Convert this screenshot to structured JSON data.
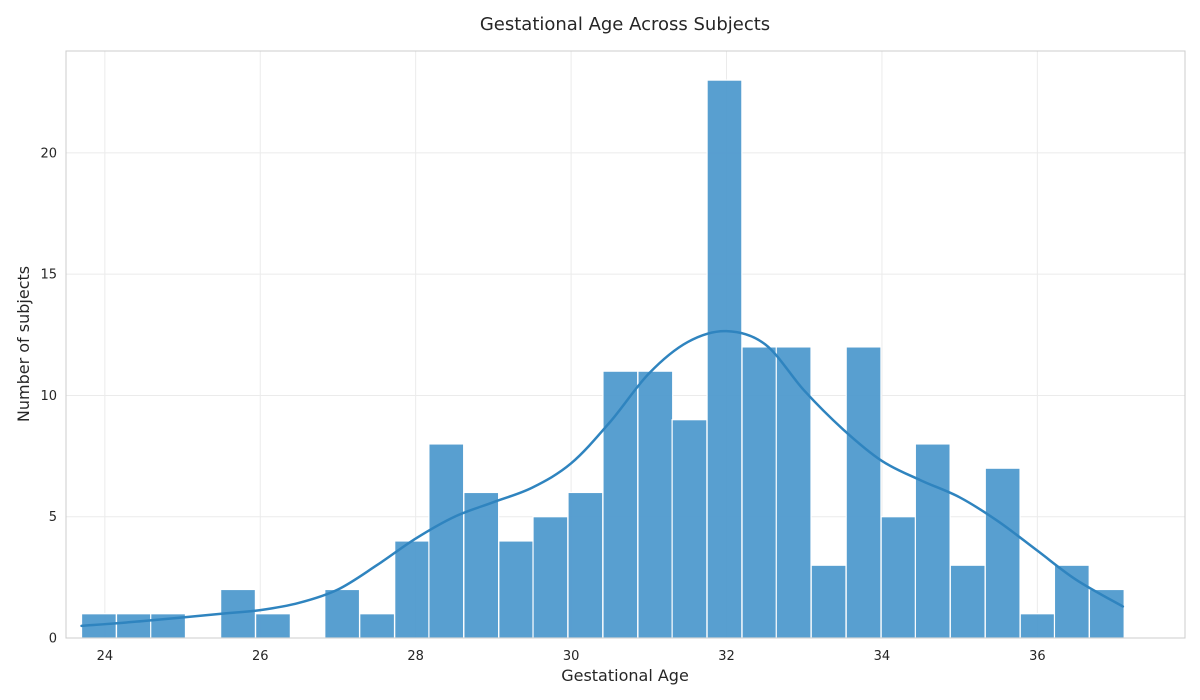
{
  "chart_data": {
    "type": "bar",
    "subtype": "histogram",
    "title": "Gestational Age Across Subjects",
    "xlabel": "Gestational Age",
    "ylabel": "Number of subjects",
    "xlim": [
      23.5,
      37.9
    ],
    "ylim": [
      0,
      24.2
    ],
    "xticks": [
      24,
      26,
      28,
      30,
      32,
      34,
      36
    ],
    "yticks": [
      0,
      5,
      10,
      15,
      20
    ],
    "grid": true,
    "legend": false,
    "bar_color": "#4b98cc",
    "kde_color": "#2f84bf",
    "bin_start": 23.7,
    "bin_width": 0.4473,
    "bins": [
      {
        "x0": 23.7,
        "count": 1
      },
      {
        "x0": 24.15,
        "count": 1
      },
      {
        "x0": 24.59,
        "count": 1
      },
      {
        "x0": 25.04,
        "count": 0
      },
      {
        "x0": 25.49,
        "count": 2
      },
      {
        "x0": 25.94,
        "count": 1
      },
      {
        "x0": 26.38,
        "count": 0
      },
      {
        "x0": 26.83,
        "count": 2
      },
      {
        "x0": 27.28,
        "count": 1
      },
      {
        "x0": 27.73,
        "count": 4
      },
      {
        "x0": 28.17,
        "count": 8
      },
      {
        "x0": 28.62,
        "count": 6
      },
      {
        "x0": 29.07,
        "count": 4
      },
      {
        "x0": 29.51,
        "count": 5
      },
      {
        "x0": 29.96,
        "count": 6
      },
      {
        "x0": 30.41,
        "count": 11
      },
      {
        "x0": 30.86,
        "count": 11
      },
      {
        "x0": 31.3,
        "count": 9
      },
      {
        "x0": 31.75,
        "count": 23
      },
      {
        "x0": 32.2,
        "count": 12
      },
      {
        "x0": 32.64,
        "count": 12
      },
      {
        "x0": 33.09,
        "count": 3
      },
      {
        "x0": 33.54,
        "count": 12
      },
      {
        "x0": 33.99,
        "count": 5
      },
      {
        "x0": 34.43,
        "count": 8
      },
      {
        "x0": 34.88,
        "count": 3
      },
      {
        "x0": 35.33,
        "count": 7
      },
      {
        "x0": 35.78,
        "count": 1
      },
      {
        "x0": 36.22,
        "count": 3
      },
      {
        "x0": 36.67,
        "count": 2
      }
    ],
    "kde": {
      "x": [
        23.7,
        24.5,
        25.5,
        26.0,
        26.5,
        27.0,
        27.5,
        28.0,
        28.5,
        29.0,
        29.5,
        30.0,
        30.5,
        31.0,
        31.5,
        32.0,
        32.5,
        33.0,
        33.5,
        34.0,
        34.5,
        35.0,
        35.5,
        36.0,
        36.5,
        37.1
      ],
      "y": [
        0.5,
        0.7,
        1.0,
        1.15,
        1.45,
        2.0,
        3.0,
        4.1,
        5.0,
        5.6,
        6.2,
        7.2,
        8.9,
        10.9,
        12.2,
        12.65,
        12.1,
        10.2,
        8.6,
        7.3,
        6.5,
        5.8,
        4.8,
        3.6,
        2.4,
        1.3
      ]
    }
  }
}
